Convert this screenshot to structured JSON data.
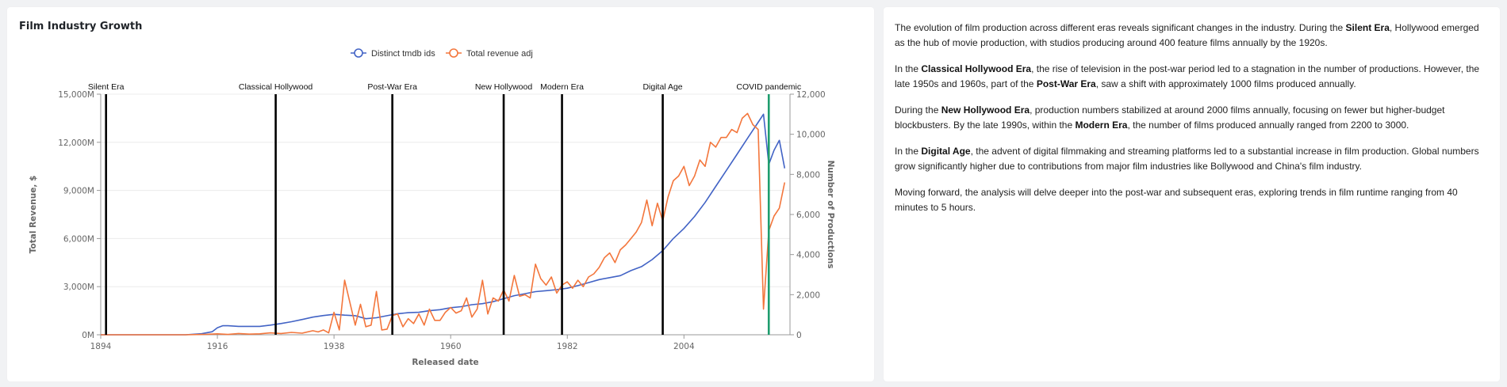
{
  "chart_title": "Film Industry Growth",
  "chart_data": {
    "type": "line",
    "title": "Film Industry Growth",
    "xlabel": "Released date",
    "ylabel_left": "Total Revenue, $",
    "ylabel_right": "Number of Productions",
    "xlim": [
      1894,
      2024
    ],
    "x_ticks": [
      "1894",
      "1916",
      "1938",
      "1960",
      "1982",
      "2004"
    ],
    "y_left_lim": [
      0,
      15000
    ],
    "y_left_ticks": [
      "0M",
      "3,000M",
      "6,000M",
      "9,000M",
      "12,000M",
      "15,000M"
    ],
    "y_right_lim": [
      0,
      12000
    ],
    "y_right_ticks": [
      "0",
      "2,000",
      "4,000",
      "6,000",
      "8,000",
      "10,000",
      "12,000"
    ],
    "grid": true,
    "legend_position": "top-center",
    "series": [
      {
        "name": "Distinct tmdb ids",
        "axis": "right",
        "color": "#4263c5",
        "x": [
          1894,
          1900,
          1905,
          1910,
          1913,
          1915,
          1916,
          1917,
          1918,
          1920,
          1922,
          1924,
          1926,
          1928,
          1930,
          1932,
          1934,
          1936,
          1938,
          1940,
          1942,
          1944,
          1946,
          1948,
          1950,
          1952,
          1954,
          1956,
          1958,
          1960,
          1962,
          1964,
          1966,
          1968,
          1970,
          1972,
          1974,
          1976,
          1978,
          1980,
          1982,
          1984,
          1986,
          1988,
          1990,
          1992,
          1994,
          1996,
          1998,
          2000,
          2002,
          2004,
          2006,
          2008,
          2010,
          2012,
          2014,
          2016,
          2017,
          2018,
          2019,
          2020,
          2021,
          2022,
          2023
        ],
        "y": [
          0,
          0,
          0,
          0,
          50,
          150,
          350,
          450,
          450,
          420,
          420,
          420,
          480,
          560,
          650,
          760,
          880,
          960,
          1020,
          980,
          950,
          800,
          850,
          950,
          1050,
          1100,
          1120,
          1200,
          1250,
          1350,
          1400,
          1500,
          1550,
          1650,
          1800,
          1950,
          2050,
          2150,
          2200,
          2250,
          2320,
          2450,
          2600,
          2750,
          2850,
          2950,
          3200,
          3400,
          3750,
          4200,
          4800,
          5300,
          5900,
          6600,
          7400,
          8200,
          9000,
          9800,
          10200,
          10600,
          11000,
          8500,
          9200,
          9700,
          8300
        ]
      },
      {
        "name": "Total revenue adj",
        "axis": "left",
        "color": "#f3763c",
        "x": [
          1894,
          1900,
          1905,
          1910,
          1914,
          1916,
          1918,
          1920,
          1922,
          1924,
          1926,
          1928,
          1930,
          1932,
          1934,
          1935,
          1936,
          1937,
          1938,
          1939,
          1940,
          1941,
          1942,
          1943,
          1944,
          1945,
          1946,
          1947,
          1948,
          1949,
          1950,
          1951,
          1952,
          1953,
          1954,
          1955,
          1956,
          1957,
          1958,
          1959,
          1960,
          1961,
          1962,
          1963,
          1964,
          1965,
          1966,
          1967,
          1968,
          1969,
          1970,
          1971,
          1972,
          1973,
          1974,
          1975,
          1976,
          1977,
          1978,
          1979,
          1980,
          1981,
          1982,
          1983,
          1984,
          1985,
          1986,
          1987,
          1988,
          1989,
          1990,
          1991,
          1992,
          1993,
          1994,
          1995,
          1996,
          1997,
          1998,
          1999,
          2000,
          2001,
          2002,
          2003,
          2004,
          2005,
          2006,
          2007,
          2008,
          2009,
          2010,
          2011,
          2012,
          2013,
          2014,
          2015,
          2016,
          2017,
          2018,
          2019,
          2020,
          2021,
          2022,
          2023
        ],
        "y": [
          0,
          0,
          0,
          0,
          30,
          60,
          20,
          80,
          40,
          60,
          120,
          80,
          150,
          100,
          250,
          180,
          300,
          120,
          1400,
          300,
          3400,
          2000,
          600,
          1900,
          500,
          600,
          2700,
          300,
          350,
          1200,
          1300,
          500,
          1000,
          700,
          1300,
          600,
          1600,
          900,
          900,
          1400,
          1700,
          1350,
          1500,
          2300,
          1100,
          1600,
          3400,
          1300,
          2300,
          2100,
          2800,
          2100,
          3700,
          2400,
          2500,
          2300,
          4400,
          3500,
          3100,
          3600,
          2600,
          3100,
          3300,
          2900,
          3400,
          3000,
          3600,
          3800,
          4200,
          4800,
          5100,
          4500,
          5300,
          5600,
          6000,
          6400,
          7000,
          8400,
          6800,
          8200,
          7100,
          8600,
          9600,
          9900,
          10500,
          9300,
          9900,
          10900,
          10500,
          12000,
          11700,
          12300,
          12300,
          12800,
          12600,
          13500,
          13800,
          13100,
          12800,
          1600,
          6500,
          7400,
          7900,
          9500
        ]
      }
    ],
    "era_markers": [
      {
        "label": "Silent Era",
        "x": 1895,
        "color": "#000000"
      },
      {
        "label": "Classical Hollywood",
        "x": 1927,
        "color": "#000000"
      },
      {
        "label": "Post-War Era",
        "x": 1949,
        "color": "#000000"
      },
      {
        "label": "New Hollywood",
        "x": 1970,
        "color": "#000000"
      },
      {
        "label": "Modern Era",
        "x": 1981,
        "color": "#000000"
      },
      {
        "label": "Digital Age",
        "x": 2000,
        "color": "#000000"
      },
      {
        "label": "COVID pandemic",
        "x": 2020,
        "color": "#1f9d6e"
      }
    ]
  },
  "paragraphs": [
    [
      {
        "t": "The evolution of film production across different eras reveals significant changes in the industry. During the "
      },
      {
        "t": "Silent Era",
        "b": true
      },
      {
        "t": ", Hollywood emerged as the hub of movie production, with studios producing around 400 feature films annually by the 1920s."
      }
    ],
    [
      {
        "t": "In the "
      },
      {
        "t": "Classical Hollywood Era",
        "b": true
      },
      {
        "t": ", the rise of television in the post-war period led to a stagnation in the number of productions. However, the late 1950s and 1960s, part of the "
      },
      {
        "t": "Post-War Era",
        "b": true
      },
      {
        "t": ", saw a shift with approximately 1000 films produced annually."
      }
    ],
    [
      {
        "t": "During the "
      },
      {
        "t": "New Hollywood Era",
        "b": true
      },
      {
        "t": ", production numbers stabilized at around 2000 films annually, focusing on fewer but higher-budget blockbusters. By the late 1990s, within the "
      },
      {
        "t": "Modern Era",
        "b": true
      },
      {
        "t": ", the number of films produced annually ranged from 2200 to 3000."
      }
    ],
    [
      {
        "t": "In the "
      },
      {
        "t": "Digital Age",
        "b": true
      },
      {
        "t": ", the advent of digital filmmaking and streaming platforms led to a substantial increase in film production. Global numbers grow significantly higher due to contributions from major film industries like Bollywood and China's film industry."
      }
    ],
    [
      {
        "t": "Moving forward, the analysis will delve deeper into the post-war and subsequent eras, exploring trends in film runtime ranging from 40 minutes to 5 hours."
      }
    ]
  ]
}
